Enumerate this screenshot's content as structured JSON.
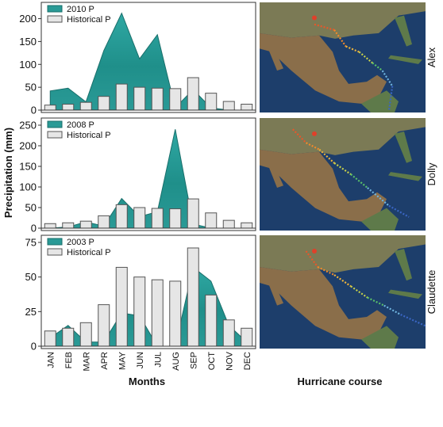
{
  "months": [
    "JAN",
    "FEB",
    "MAR",
    "APR",
    "MAY",
    "JUN",
    "JUL",
    "AUG",
    "SEP",
    "OCT",
    "NOV",
    "DEC"
  ],
  "labels": {
    "y_axis": "Precipitation (mm)",
    "x_axis": "Months",
    "map_caption": "Hurricane course"
  },
  "colors": {
    "area": "#2a9a96",
    "area_edge": "#1a6f6b",
    "bar": "#e6e6e6",
    "bar_edge": "#555555",
    "map_water": "#1d3e6b",
    "map_land": "#8a7a58"
  },
  "chart_data": [
    {
      "type": "area+bar",
      "hurricane": "Alex",
      "ylim": [
        0,
        220
      ],
      "yticks": [
        0,
        50,
        100,
        150,
        200
      ],
      "series": [
        {
          "name": "2010 P",
          "kind": "area",
          "values": [
            42,
            48,
            18,
            130,
            212,
            112,
            165,
            5,
            45,
            5,
            0,
            0
          ]
        },
        {
          "name": "Historical P",
          "kind": "bar",
          "values": [
            11,
            13,
            17,
            30,
            57,
            50,
            48,
            47,
            71,
            37,
            19,
            13
          ]
        }
      ]
    },
    {
      "type": "area+bar",
      "hurricane": "Dolly",
      "ylim": [
        0,
        250
      ],
      "yticks": [
        0,
        50,
        100,
        150,
        200,
        250
      ],
      "series": [
        {
          "name": "2008 P",
          "kind": "area",
          "values": [
            0,
            3,
            15,
            5,
            72,
            28,
            40,
            240,
            10,
            0,
            0,
            0
          ]
        },
        {
          "name": "Historical P",
          "kind": "bar",
          "values": [
            11,
            13,
            17,
            30,
            57,
            50,
            48,
            47,
            71,
            37,
            19,
            13
          ]
        }
      ]
    },
    {
      "type": "area+bar",
      "hurricane": "Claudette",
      "ylim": [
        0,
        75
      ],
      "yticks": [
        0,
        25,
        50,
        75
      ],
      "series": [
        {
          "name": "2003 P",
          "kind": "area",
          "values": [
            6,
            15,
            3,
            3,
            24,
            22,
            0,
            0,
            57,
            47,
            15,
            3
          ]
        },
        {
          "name": "Historical P",
          "kind": "bar",
          "values": [
            11,
            13,
            17,
            30,
            57,
            50,
            48,
            47,
            71,
            37,
            19,
            13
          ]
        }
      ]
    }
  ]
}
